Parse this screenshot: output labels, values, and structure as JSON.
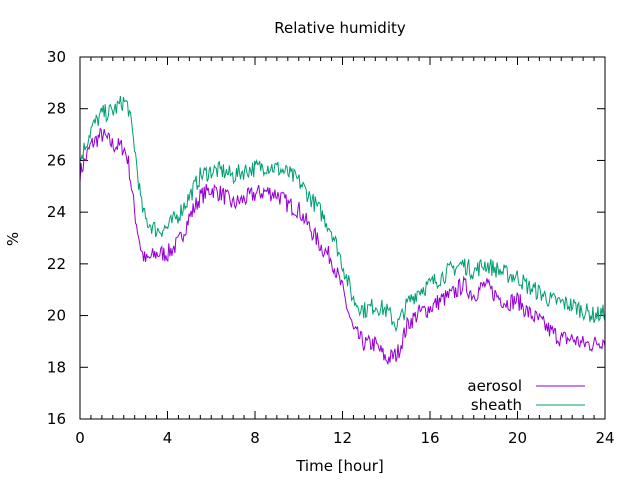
{
  "chart_data": {
    "type": "line",
    "title": "Relative humidity",
    "xlabel": "Time [hour]",
    "ylabel": "%",
    "xlim": [
      0,
      24
    ],
    "ylim": [
      16,
      30
    ],
    "xticks": [
      0,
      4,
      8,
      12,
      16,
      20,
      24
    ],
    "yticks": [
      16,
      18,
      20,
      22,
      24,
      26,
      28,
      30
    ],
    "grid": false,
    "legend_position": "bottom-right",
    "series": [
      {
        "name": "aerosol",
        "color": "#9400d3",
        "x": [
          0,
          0.5,
          1,
          1.5,
          2,
          2.2,
          2.5,
          2.8,
          3,
          3.5,
          4,
          4.5,
          5,
          5.5,
          6,
          6.5,
          7,
          7.5,
          8,
          8.5,
          9,
          9.5,
          10,
          10.5,
          11,
          11.5,
          12,
          12.5,
          13,
          13.5,
          14,
          14.5,
          15,
          15.5,
          16,
          16.5,
          17,
          17.5,
          18,
          18.5,
          19,
          19.5,
          20,
          20.5,
          21,
          21.5,
          22,
          22.5,
          23,
          23.5,
          24
        ],
        "y": [
          25.5,
          26.6,
          27.0,
          26.6,
          26.5,
          26.0,
          24.0,
          22.5,
          22.1,
          22.4,
          22.4,
          22.8,
          23.8,
          24.6,
          24.9,
          24.7,
          24.3,
          24.5,
          24.7,
          24.8,
          24.7,
          24.3,
          24.1,
          23.4,
          22.7,
          22.2,
          21.0,
          19.4,
          18.9,
          18.9,
          18.3,
          18.5,
          19.7,
          20.1,
          20.3,
          20.6,
          20.8,
          21.2,
          20.8,
          21.2,
          20.8,
          20.5,
          20.6,
          20.1,
          19.8,
          19.4,
          19.1,
          19.1,
          18.9,
          18.9,
          19.1
        ]
      },
      {
        "name": "sheath",
        "color": "#009e73",
        "x": [
          0,
          0.5,
          1,
          1.5,
          2,
          2.2,
          2.5,
          2.8,
          3,
          3.5,
          4,
          4.5,
          5,
          5.5,
          6,
          6.5,
          7,
          7.5,
          8,
          8.5,
          9,
          9.5,
          10,
          10.5,
          11,
          11.5,
          12,
          12.5,
          13,
          13.5,
          14,
          14.5,
          15,
          15.5,
          16,
          16.5,
          17,
          17.5,
          18,
          18.5,
          19,
          19.5,
          20,
          20.5,
          21,
          21.5,
          22,
          22.5,
          23,
          23.5,
          24
        ],
        "y": [
          26.0,
          27.2,
          27.8,
          27.9,
          28.3,
          28.1,
          26.5,
          24.3,
          23.7,
          23.3,
          23.4,
          23.9,
          24.6,
          25.4,
          25.6,
          25.6,
          25.4,
          25.6,
          25.7,
          25.8,
          25.7,
          25.5,
          25.2,
          24.6,
          24.0,
          23.3,
          22.0,
          20.6,
          20.2,
          20.4,
          20.2,
          19.6,
          20.5,
          21.0,
          21.2,
          21.5,
          21.8,
          22.0,
          21.7,
          22.0,
          21.8,
          21.6,
          21.5,
          21.1,
          20.9,
          20.6,
          20.5,
          20.4,
          20.2,
          20.0,
          20.1
        ]
      }
    ]
  }
}
